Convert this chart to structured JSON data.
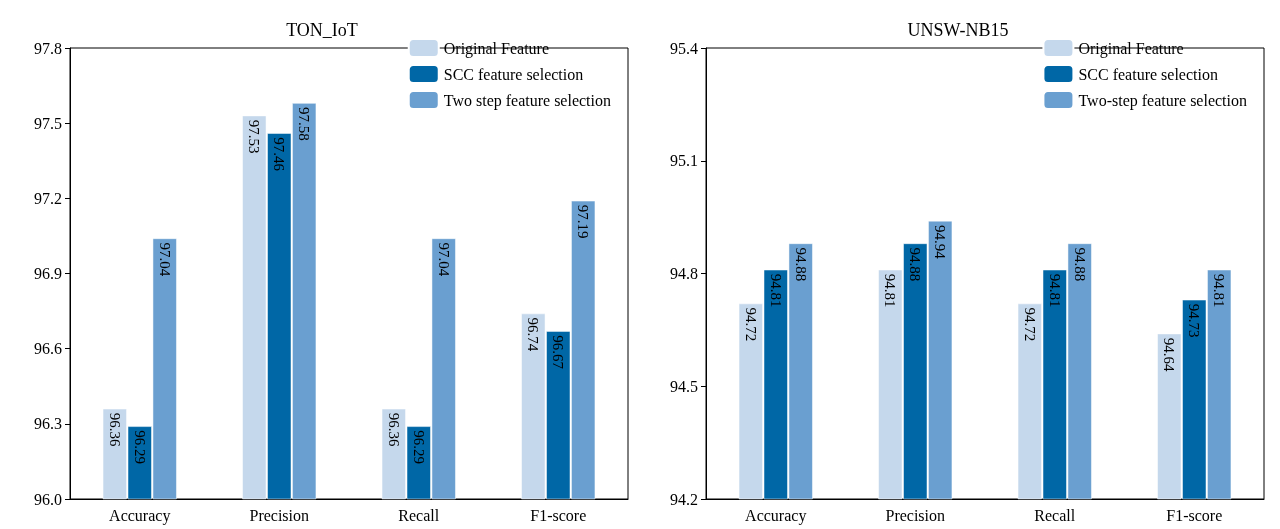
{
  "chart_data": [
    {
      "type": "bar",
      "title": "TON_IoT",
      "categories": [
        "Accuracy",
        "Precision",
        "Recall",
        "F1-score"
      ],
      "series": [
        {
          "name": "Original Feature",
          "color": "#c5d8ec",
          "values": [
            96.36,
            97.53,
            96.36,
            96.74
          ]
        },
        {
          "name": "SCC feature selection",
          "color": "#0067a6",
          "values": [
            96.29,
            97.46,
            96.29,
            96.67
          ]
        },
        {
          "name": "Two step feature selection",
          "color": "#6a9fd0",
          "values": [
            97.04,
            97.58,
            97.04,
            97.19
          ]
        }
      ],
      "ylim": [
        96.0,
        97.8
      ],
      "yticks": [
        {
          "value": 96.0,
          "label": "96.0"
        },
        96.3,
        96.6,
        96.9,
        97.2,
        97.5,
        97.8
      ],
      "data_labels": true,
      "legend": "top right",
      "grid": false
    },
    {
      "type": "bar",
      "title": "UNSW-NB15",
      "categories": [
        "Accuracy",
        "Precision",
        "Recall",
        "F1-score"
      ],
      "series": [
        {
          "name": "Original Feature",
          "color": "#c5d8ec",
          "values": [
            94.72,
            94.81,
            94.72,
            94.64
          ]
        },
        {
          "name": "SCC feature selection",
          "color": "#0067a6",
          "values": [
            94.81,
            94.88,
            94.81,
            94.73
          ]
        },
        {
          "name": "Two-step feature selection",
          "color": "#6a9fd0",
          "values": [
            94.88,
            94.94,
            94.88,
            94.81
          ]
        }
      ],
      "ylim": [
        94.2,
        95.4
      ],
      "yticks": [
        94.2,
        94.5,
        94.8,
        95.1,
        95.4
      ],
      "data_labels": true,
      "legend": "top right",
      "grid": false
    }
  ]
}
